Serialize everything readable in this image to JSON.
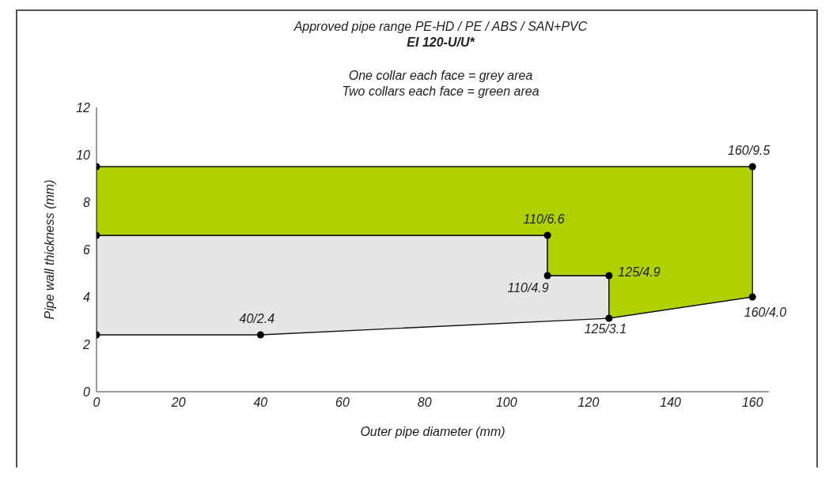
{
  "chart_data": {
    "type": "area",
    "title": "Approved pipe range PE-HD / PE / ABS / SAN+PVC",
    "subtitle": "EI 120-U/U*",
    "annotations": [
      "One collar each face = grey area",
      "Two collars each face = green area"
    ],
    "xlabel": "Outer pipe diameter (mm)",
    "ylabel": "Pipe wall thickness (mm)",
    "xlim": [
      0,
      164
    ],
    "xticks": [
      0,
      20,
      40,
      60,
      80,
      100,
      120,
      140,
      160
    ],
    "ylim": [
      0,
      12
    ],
    "yticks": [
      0,
      2,
      4,
      6,
      8,
      10,
      12
    ],
    "grid": false,
    "series": [
      {
        "color": "#e6e6e6",
        "x": [
          0,
          40,
          125,
          125,
          110,
          110,
          0
        ],
        "values": [
          2.4,
          2.4,
          3.1,
          4.9,
          4.9,
          6.6,
          6.6
        ]
      },
      {
        "color": "#b0d000",
        "x": [
          0,
          110,
          110,
          125,
          125,
          160,
          160,
          0
        ],
        "values": [
          6.6,
          6.6,
          4.9,
          4.9,
          3.1,
          4.0,
          9.5,
          9.5
        ]
      },
      {
        "type": "scatter",
        "color": "#000000",
        "marker": "circle",
        "x": [
          0,
          0,
          0,
          40,
          110,
          110,
          125,
          125,
          160,
          160
        ],
        "values": [
          9.5,
          6.6,
          2.4,
          2.4,
          6.6,
          4.9,
          4.9,
          3.1,
          4.0,
          9.5
        ],
        "value_labels": [
          null,
          null,
          null,
          "40/2.4",
          "110/6.6",
          "110/4.9",
          "125/4.9",
          "125/3.1",
          "160/4.0",
          "160/9.5"
        ]
      }
    ]
  }
}
